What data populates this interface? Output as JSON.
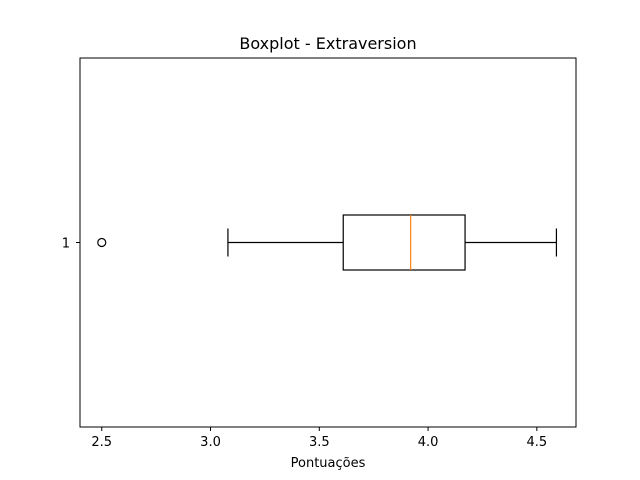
{
  "chart_data": {
    "type": "boxplot",
    "orientation": "horizontal",
    "title": "Boxplot - Extraversion",
    "xlabel": "Pontuações",
    "ylabel": "",
    "xlim": [
      2.4,
      4.68
    ],
    "xticks": [
      2.5,
      3.0,
      3.5,
      4.0,
      4.5
    ],
    "xtick_labels": [
      "2.5",
      "3.0",
      "3.5",
      "4.0",
      "4.5"
    ],
    "categories": [
      "1"
    ],
    "boxes": [
      {
        "category": "1",
        "whisker_low": 3.08,
        "q1": 3.61,
        "median": 3.92,
        "q3": 4.17,
        "whisker_high": 4.59,
        "outliers": [
          2.5
        ]
      }
    ],
    "grid": false,
    "colors": {
      "box": "#000000",
      "median": "#ff7f0e",
      "whisker": "#000000",
      "outlier_edge": "#000000"
    }
  }
}
